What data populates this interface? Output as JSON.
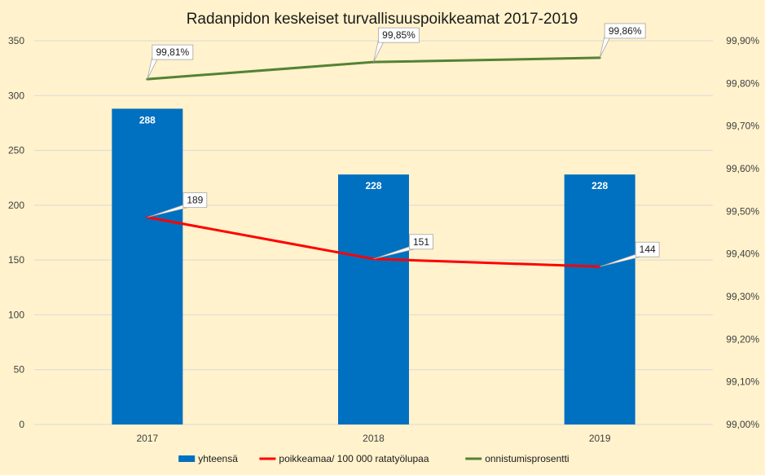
{
  "chart_data": {
    "type": "bar",
    "title": "Radanpidon keskeiset turvallisuuspoikkeamat 2017-2019",
    "categories": [
      "2017",
      "2018",
      "2019"
    ],
    "left_axis": {
      "ylim": [
        0,
        350
      ],
      "ticks": [
        "0",
        "50",
        "100",
        "150",
        "200",
        "250",
        "300",
        "350"
      ]
    },
    "right_axis": {
      "ylim": [
        99.0,
        99.9
      ],
      "ticks": [
        "99,00%",
        "99,10%",
        "99,20%",
        "99,30%",
        "99,40%",
        "99,50%",
        "99,60%",
        "99,70%",
        "99,80%",
        "99,90%"
      ]
    },
    "grid": true,
    "legend_position": "bottom",
    "series": [
      {
        "name": "yhteensä",
        "kind": "bar",
        "axis": "left",
        "color": "#0070c0",
        "values": [
          288,
          228,
          228
        ],
        "labels": [
          "288",
          "228",
          "228"
        ]
      },
      {
        "name": "poikkeamaa/ 100 000 ratatyölupaa",
        "kind": "line",
        "axis": "left",
        "color": "#ff0000",
        "values": [
          189,
          151,
          144
        ],
        "labels": [
          "189",
          "151",
          "144"
        ]
      },
      {
        "name": "onnistumisprosentti",
        "kind": "line",
        "axis": "right",
        "color": "#548235",
        "values": [
          99.81,
          99.85,
          99.86
        ],
        "labels": [
          "99,81%",
          "99,85%",
          "99,86%"
        ]
      }
    ]
  }
}
